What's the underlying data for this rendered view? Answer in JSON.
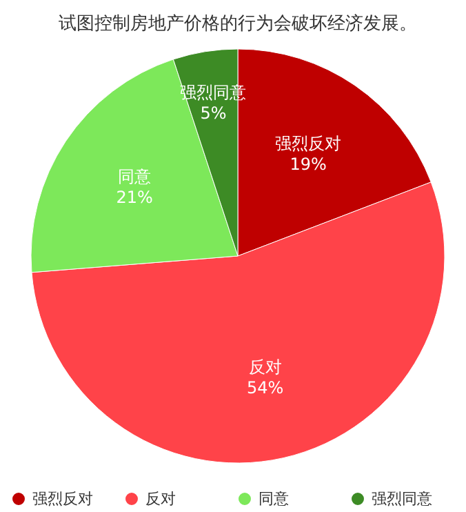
{
  "chart_data": {
    "type": "pie",
    "title": "试图控制房地产价格的行为会破坏经济发展。",
    "categories": [
      "强烈反对",
      "反对",
      "同意",
      "强烈同意"
    ],
    "values": [
      19,
      54,
      21,
      5
    ],
    "value_labels": [
      "19%",
      "54%",
      "21%",
      "5%"
    ],
    "colors": [
      "#bf0000",
      "#ff4349",
      "#7de85a",
      "#3d8b25"
    ],
    "legend": "bottom"
  }
}
